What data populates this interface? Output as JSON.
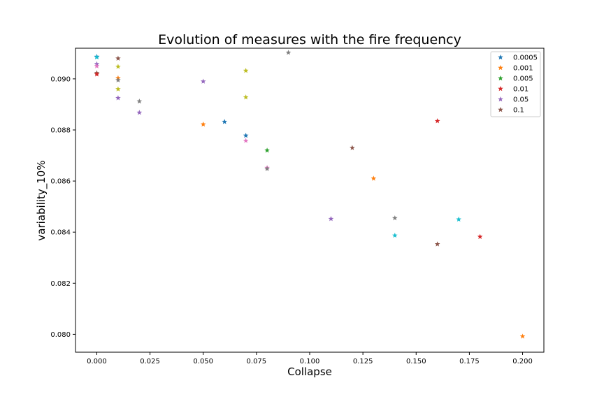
{
  "chart_data": {
    "type": "scatter",
    "title": "Evolution of measures with the fire frequency",
    "xlabel": "Collapse",
    "ylabel": "variability_10%",
    "xlim": [
      -0.01,
      0.21
    ],
    "ylim": [
      0.0793,
      0.0912
    ],
    "xticks": [
      "0.000",
      "0.025",
      "0.050",
      "0.075",
      "0.100",
      "0.125",
      "0.150",
      "0.175",
      "0.200"
    ],
    "yticks": [
      "0.080",
      "0.082",
      "0.084",
      "0.086",
      "0.088",
      "0.090"
    ],
    "legend_position": "top-right",
    "marker": "star",
    "legend": [
      {
        "label": "0.0005",
        "color": "#1f77b4"
      },
      {
        "label": "0.001",
        "color": "#ff7f0e"
      },
      {
        "label": "0.005",
        "color": "#2ca02c"
      },
      {
        "label": "0.01",
        "color": "#d62728"
      },
      {
        "label": "0.05",
        "color": "#9467bd"
      },
      {
        "label": "0.1",
        "color": "#8c564b"
      }
    ],
    "points": [
      {
        "x": 0.0,
        "y": 0.09087,
        "color": "#1f77b4"
      },
      {
        "x": 0.0,
        "y": 0.09085,
        "color": "#17becf"
      },
      {
        "x": 0.0,
        "y": 0.09058,
        "color": "#9467bd"
      },
      {
        "x": 0.0,
        "y": 0.0905,
        "color": "#e377c2"
      },
      {
        "x": 0.0,
        "y": 0.09023,
        "color": "#8c564b"
      },
      {
        "x": 0.0,
        "y": 0.09018,
        "color": "#d62728"
      },
      {
        "x": 0.01,
        "y": 0.0908,
        "color": "#8c564b"
      },
      {
        "x": 0.01,
        "y": 0.09048,
        "color": "#bcbd22"
      },
      {
        "x": 0.01,
        "y": 0.09003,
        "color": "#ff7f0e"
      },
      {
        "x": 0.01,
        "y": 0.08995,
        "color": "#7f7f7f"
      },
      {
        "x": 0.01,
        "y": 0.0896,
        "color": "#bcbd22"
      },
      {
        "x": 0.01,
        "y": 0.08925,
        "color": "#9467bd"
      },
      {
        "x": 0.02,
        "y": 0.08912,
        "color": "#7f7f7f"
      },
      {
        "x": 0.02,
        "y": 0.08868,
        "color": "#9467bd"
      },
      {
        "x": 0.05,
        "y": 0.0899,
        "color": "#9467bd"
      },
      {
        "x": 0.05,
        "y": 0.08822,
        "color": "#ff7f0e"
      },
      {
        "x": 0.06,
        "y": 0.08832,
        "color": "#1f77b4"
      },
      {
        "x": 0.07,
        "y": 0.09032,
        "color": "#bcbd22"
      },
      {
        "x": 0.07,
        "y": 0.08928,
        "color": "#bcbd22"
      },
      {
        "x": 0.07,
        "y": 0.08778,
        "color": "#1f77b4"
      },
      {
        "x": 0.07,
        "y": 0.08758,
        "color": "#e377c2"
      },
      {
        "x": 0.08,
        "y": 0.0872,
        "color": "#2ca02c"
      },
      {
        "x": 0.08,
        "y": 0.08652,
        "color": "#e377c2"
      },
      {
        "x": 0.08,
        "y": 0.08648,
        "color": "#7f7f7f"
      },
      {
        "x": 0.09,
        "y": 0.09103,
        "color": "#7f7f7f"
      },
      {
        "x": 0.11,
        "y": 0.08452,
        "color": "#9467bd"
      },
      {
        "x": 0.12,
        "y": 0.0873,
        "color": "#8c564b"
      },
      {
        "x": 0.13,
        "y": 0.0861,
        "color": "#ff7f0e"
      },
      {
        "x": 0.14,
        "y": 0.08455,
        "color": "#7f7f7f"
      },
      {
        "x": 0.14,
        "y": 0.08387,
        "color": "#17becf"
      },
      {
        "x": 0.16,
        "y": 0.08835,
        "color": "#d62728"
      },
      {
        "x": 0.16,
        "y": 0.08353,
        "color": "#8c564b"
      },
      {
        "x": 0.17,
        "y": 0.0845,
        "color": "#17becf"
      },
      {
        "x": 0.18,
        "y": 0.08382,
        "color": "#d62728"
      },
      {
        "x": 0.2,
        "y": 0.07992,
        "color": "#ff7f0e"
      }
    ]
  }
}
